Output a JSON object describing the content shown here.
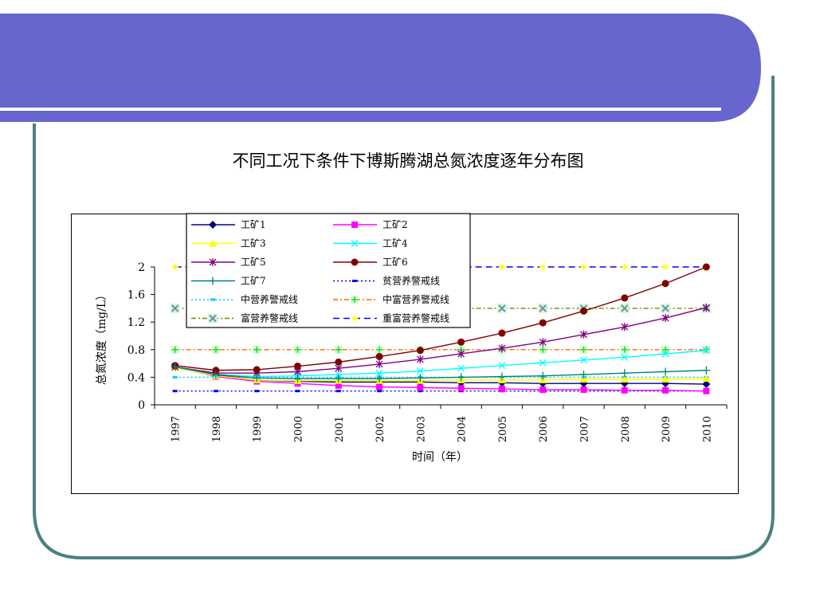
{
  "slide": {
    "title": "不同工况下条件下博斯腾湖总氮浓度逐年分布图",
    "colors": {
      "banner": "#6666CC",
      "frame": "#4D8080",
      "banner_line": "#FFFFFF"
    }
  },
  "chart_data": {
    "type": "line",
    "title": "",
    "xlabel": "时间（年）",
    "ylabel": "总氮浓度（mg/L）",
    "categories": [
      "1997",
      "1998",
      "1999",
      "2000",
      "2001",
      "2002",
      "2003",
      "2004",
      "2005",
      "2006",
      "2007",
      "2008",
      "2009",
      "2010"
    ],
    "ylim": [
      0,
      2.0
    ],
    "yticks": [
      "0",
      "0.4",
      "0.8",
      "1.2",
      "1.6",
      "2"
    ],
    "grid": false,
    "legend_position": "top",
    "series": [
      {
        "name": "工矿1",
        "color": "#000080",
        "marker": "diamond",
        "dash": "solid",
        "values": [
          0.55,
          0.43,
          0.36,
          0.34,
          0.33,
          0.33,
          0.33,
          0.32,
          0.32,
          0.31,
          0.31,
          0.31,
          0.31,
          0.3
        ]
      },
      {
        "name": "工矿2",
        "color": "#FF00FF",
        "marker": "square",
        "dash": "solid",
        "values": [
          0.55,
          0.41,
          0.34,
          0.31,
          0.28,
          0.26,
          0.25,
          0.24,
          0.23,
          0.22,
          0.22,
          0.21,
          0.21,
          0.2
        ]
      },
      {
        "name": "工矿3",
        "color": "#FFFF00",
        "marker": "triangle",
        "dash": "solid",
        "values": [
          0.54,
          0.42,
          0.36,
          0.35,
          0.35,
          0.35,
          0.35,
          0.36,
          0.36,
          0.36,
          0.37,
          0.37,
          0.37,
          0.38
        ]
      },
      {
        "name": "工矿4",
        "color": "#00FFFF",
        "marker": "x",
        "dash": "solid",
        "values": [
          0.55,
          0.44,
          0.41,
          0.42,
          0.44,
          0.46,
          0.49,
          0.53,
          0.57,
          0.61,
          0.65,
          0.69,
          0.74,
          0.79
        ]
      },
      {
        "name": "工矿5",
        "color": "#800080",
        "marker": "asterisk",
        "dash": "solid",
        "values": [
          0.55,
          0.46,
          0.46,
          0.48,
          0.53,
          0.59,
          0.66,
          0.74,
          0.82,
          0.91,
          1.02,
          1.13,
          1.26,
          1.41
        ]
      },
      {
        "name": "工矿6",
        "color": "#800000",
        "marker": "circle",
        "dash": "solid",
        "values": [
          0.57,
          0.5,
          0.51,
          0.56,
          0.62,
          0.7,
          0.79,
          0.91,
          1.04,
          1.19,
          1.36,
          1.55,
          1.76,
          2.0
        ]
      },
      {
        "name": "工矿7",
        "color": "#008080",
        "marker": "plus",
        "dash": "solid",
        "values": [
          0.55,
          0.44,
          0.39,
          0.38,
          0.38,
          0.38,
          0.39,
          0.4,
          0.41,
          0.42,
          0.44,
          0.46,
          0.48,
          0.5
        ]
      },
      {
        "name": "贫营养警戒线",
        "color": "#0000FF",
        "marker": "dash",
        "dash": "dot",
        "values": [
          0.2,
          0.2,
          0.2,
          0.2,
          0.2,
          0.2,
          0.2,
          0.2,
          0.2,
          0.2,
          0.2,
          0.2,
          0.2,
          0.2
        ]
      },
      {
        "name": "中营养警戒线",
        "color": "#00CCFF",
        "marker": "dash",
        "dash": "dot",
        "values": [
          0.4,
          0.4,
          0.4,
          0.4,
          0.4,
          0.4,
          0.4,
          0.4,
          0.4,
          0.4,
          0.4,
          0.4,
          0.4,
          0.4
        ]
      },
      {
        "name": "中富营养警戒线",
        "color": "#FF6600",
        "marker": "plus-box",
        "dash": "dashdot",
        "values": [
          0.8,
          0.8,
          0.8,
          0.8,
          0.8,
          0.8,
          0.8,
          0.8,
          0.8,
          0.8,
          0.8,
          0.8,
          0.8,
          0.8
        ]
      },
      {
        "name": "富营养警戒线",
        "color": "#808000",
        "marker": "x-box",
        "dash": "dashdot",
        "values": [
          1.4,
          1.4,
          1.4,
          1.4,
          1.4,
          1.4,
          1.4,
          1.4,
          1.4,
          1.4,
          1.4,
          1.4,
          1.4,
          1.4
        ]
      },
      {
        "name": "重富营养警戒线",
        "color": "#0000FF",
        "marker": "star-box",
        "dash": "dash",
        "values": [
          2.0,
          2.0,
          2.0,
          2.0,
          2.0,
          2.0,
          2.0,
          2.0,
          2.0,
          2.0,
          2.0,
          2.0,
          2.0,
          2.0
        ]
      }
    ]
  }
}
